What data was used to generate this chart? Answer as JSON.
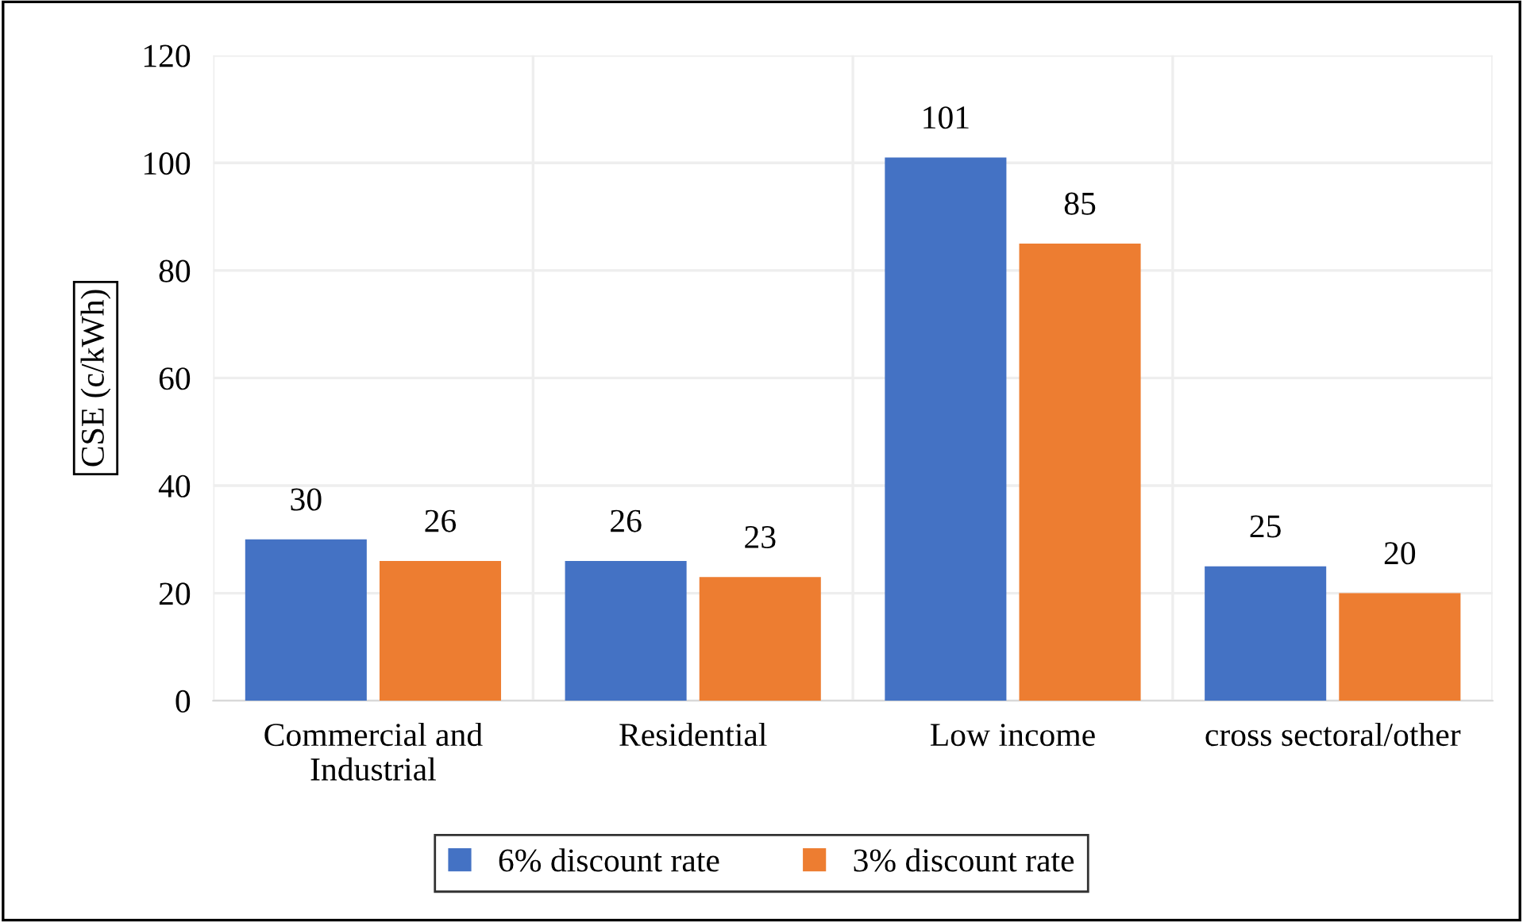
{
  "chart_data": {
    "type": "bar",
    "ylabel": "CSE (c/kWh)",
    "categories": [
      "Commercial and\nIndustrial",
      "Residential",
      "Low income",
      "cross sectoral/other"
    ],
    "series": [
      {
        "name": "6% discount rate",
        "color": "#4472c4",
        "values": [
          30,
          26,
          101,
          25
        ]
      },
      {
        "name": "3% discount rate",
        "color": "#ed7d31",
        "values": [
          26,
          23,
          85,
          20
        ]
      }
    ],
    "ylim": [
      0,
      120
    ],
    "yticks": [
      0,
      20,
      40,
      60,
      80,
      100,
      120
    ],
    "grid": true,
    "legend": "bottom",
    "data_labels": true
  }
}
